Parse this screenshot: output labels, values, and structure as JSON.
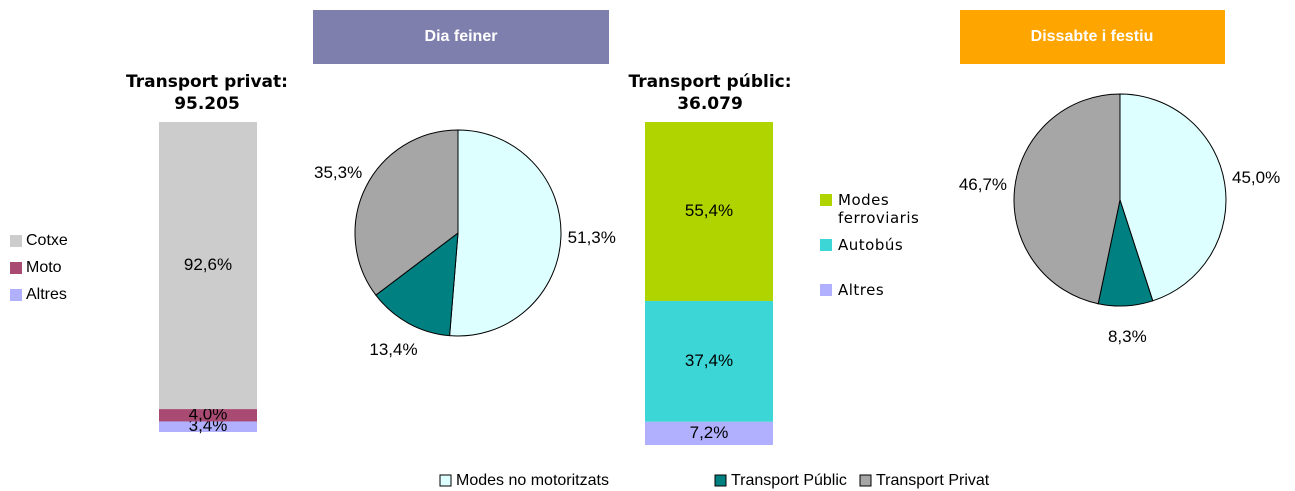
{
  "headers": [
    "Dia feiner",
    "Dissabte i festiu"
  ],
  "chart_data": [
    {
      "type": "stacked_bar",
      "title": "Transport privat:",
      "subtitle": "95.205",
      "series": [
        {
          "name": "Cotxe",
          "color": "#cccccc",
          "values": [
            92.6
          ],
          "value_labels": [
            "92,6%"
          ]
        },
        {
          "name": "Moto",
          "color": "#a94a73",
          "values": [
            4.0
          ],
          "value_labels": [
            "4,0%"
          ]
        },
        {
          "name": "Altres",
          "color": "#b0b0ff",
          "values": [
            3.4
          ],
          "value_labels": [
            "3,4%"
          ]
        }
      ]
    },
    {
      "type": "pie",
      "values": [
        51.3,
        13.4,
        35.3
      ],
      "value_labels": [
        "51,3%",
        "13,4%",
        "35,3%"
      ],
      "colors": [
        "#ddffff",
        "#008080",
        "#a6a6a6"
      ]
    },
    {
      "type": "stacked_bar",
      "title": "Transport públic:",
      "subtitle": "36.079",
      "series": [
        {
          "name": "Modes ferroviaris",
          "color": "#afd400",
          "values": [
            55.4
          ],
          "value_labels": [
            "55,4%"
          ]
        },
        {
          "name": "Autobús",
          "color": "#3cd6d6",
          "values": [
            37.4
          ],
          "value_labels": [
            "37,4%"
          ]
        },
        {
          "name": "Altres",
          "color": "#b0b0ff",
          "values": [
            7.2
          ],
          "value_labels": [
            "7,2%"
          ]
        }
      ]
    },
    {
      "type": "pie",
      "values": [
        45.0,
        8.3,
        46.7
      ],
      "value_labels": [
        "45,0%",
        "8,3%",
        "46,7%"
      ],
      "colors": [
        "#ddffff",
        "#008080",
        "#a6a6a6"
      ]
    }
  ],
  "legend": {
    "labels": [
      "Modes no motoritzats",
      "Transport Públic",
      "Transport Privat"
    ],
    "colors": [
      "#ddffff",
      "#008080",
      "#a6a6a6"
    ]
  }
}
